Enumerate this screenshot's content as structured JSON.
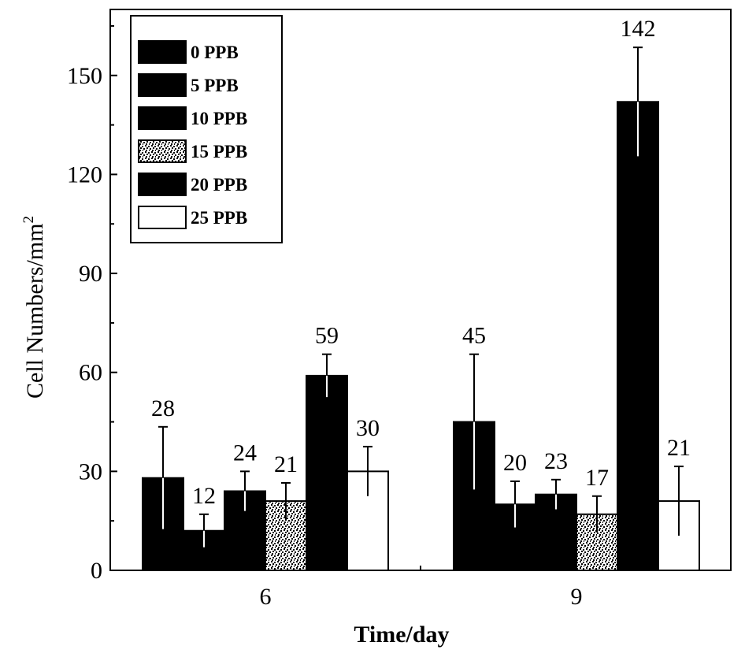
{
  "chart_data": {
    "type": "bar",
    "title": "",
    "xlabel": "Time/day",
    "ylabel": "Cell Numbers/mm",
    "ylabel_superscript": "2",
    "ylim": [
      0,
      170
    ],
    "yticks": [
      "0",
      "30",
      "60",
      "90",
      "120",
      "150"
    ],
    "ytick_values": [
      0,
      30,
      60,
      90,
      120,
      150
    ],
    "categories": [
      "6",
      "9"
    ],
    "legend_position": "top-left",
    "series": [
      {
        "name": "0 PPB",
        "fill": "solid-black",
        "values": [
          28,
          45
        ],
        "labels": [
          "28",
          "45"
        ],
        "errors": [
          15.5,
          20.5
        ]
      },
      {
        "name": "5 PPB",
        "fill": "solid-black",
        "values": [
          12,
          20
        ],
        "labels": [
          "12",
          "20"
        ],
        "errors": [
          5,
          7
        ]
      },
      {
        "name": "10 PPB",
        "fill": "solid-black",
        "values": [
          24,
          23
        ],
        "labels": [
          "24",
          "23"
        ],
        "errors": [
          6,
          4.5
        ]
      },
      {
        "name": "15 PPB",
        "fill": "speckled",
        "values": [
          21,
          17
        ],
        "labels": [
          "21",
          "17"
        ],
        "errors": [
          5.5,
          5.5
        ]
      },
      {
        "name": "20 PPB",
        "fill": "solid-black",
        "values": [
          59,
          142
        ],
        "labels": [
          "59",
          "142"
        ],
        "errors": [
          6.5,
          16.5
        ]
      },
      {
        "name": "25 PPB",
        "fill": "white",
        "values": [
          30,
          21
        ],
        "labels": [
          "30",
          "21"
        ],
        "errors": [
          7.5,
          10.5
        ]
      }
    ],
    "colors": {
      "bar_dark": "#000000",
      "bar_light": "#ffffff",
      "axis": "#000000",
      "background": "#ffffff"
    }
  }
}
